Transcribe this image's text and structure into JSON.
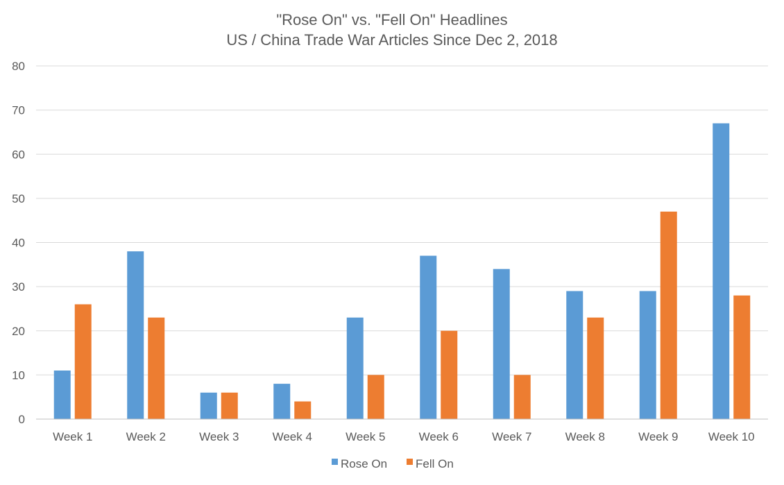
{
  "chart_data": {
    "type": "bar",
    "title": "\"Rose On\" vs. \"Fell On\" Headlines",
    "subtitle": "US / China Trade War Articles Since Dec 2, 2018",
    "xlabel": "",
    "ylabel": "",
    "ylim": [
      0,
      80
    ],
    "yticks": [
      0,
      10,
      20,
      30,
      40,
      50,
      60,
      70,
      80
    ],
    "grid": true,
    "legend_position": "bottom",
    "categories": [
      "Week 1",
      "Week 2",
      "Week 3",
      "Week 4",
      "Week 5",
      "Week 6",
      "Week 7",
      "Week 8",
      "Week 9",
      "Week 10"
    ],
    "series": [
      {
        "name": "Rose On",
        "color": "#5b9bd5",
        "values": [
          11,
          38,
          6,
          8,
          23,
          37,
          34,
          29,
          29,
          67
        ]
      },
      {
        "name": "Fell On",
        "color": "#ed7d31",
        "values": [
          26,
          23,
          6,
          4,
          10,
          20,
          10,
          23,
          47,
          28
        ]
      }
    ]
  }
}
